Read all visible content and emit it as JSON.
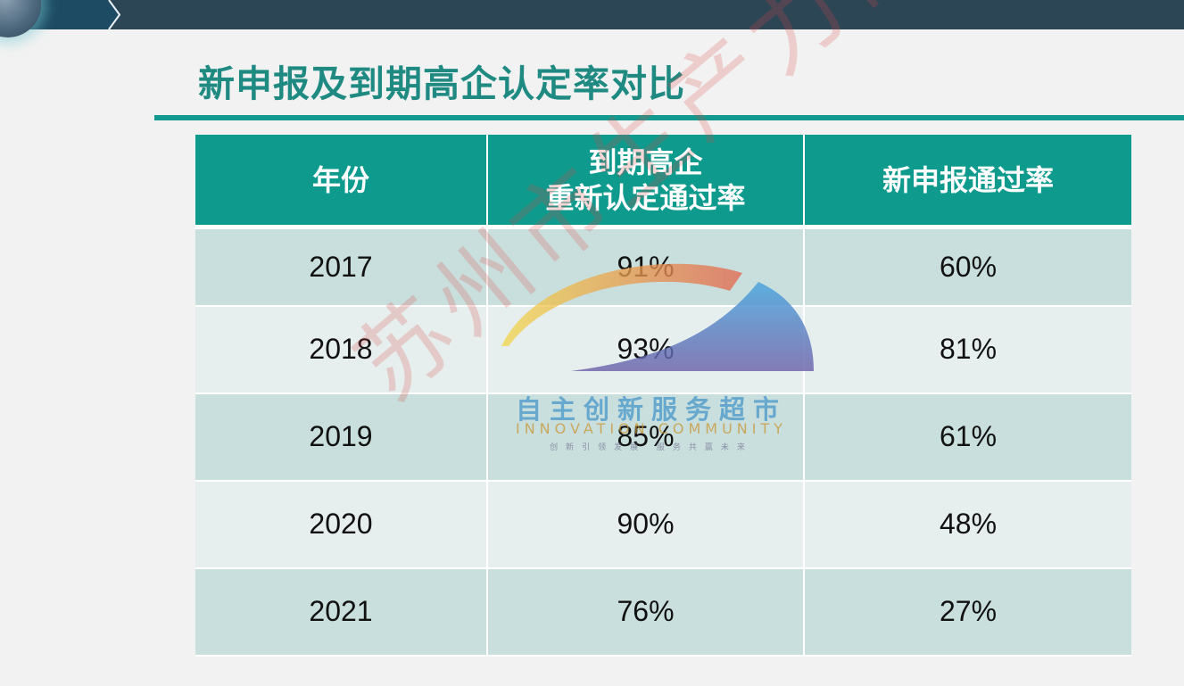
{
  "title": "新申报及到期高企认定率对比",
  "table": {
    "headers": {
      "year": "年份",
      "renewal_line1": "到期高企",
      "renewal_line2": "重新认定通过率",
      "new_rate": "新申报通过率"
    },
    "rows": [
      {
        "year": "2017",
        "renewal": "91%",
        "new": "60%"
      },
      {
        "year": "2018",
        "renewal": "93%",
        "new": "81%"
      },
      {
        "year": "2019",
        "renewal": "85%",
        "new": "61%"
      },
      {
        "year": "2020",
        "renewal": "90%",
        "new": "48%"
      },
      {
        "year": "2021",
        "renewal": "76%",
        "new": "27%"
      }
    ]
  },
  "watermark": {
    "text": "苏州市生产力促进中心",
    "logo_cn": "自主创新服务超市",
    "logo_en": "INNOVATION COMMUNITY",
    "logo_slogan": "创新引领发展 服务共赢未来"
  },
  "colors": {
    "accent": "#0e9b8e",
    "top_bar": "#2d4656",
    "row_odd": "#c9dfdd",
    "row_even": "#e6efee"
  }
}
